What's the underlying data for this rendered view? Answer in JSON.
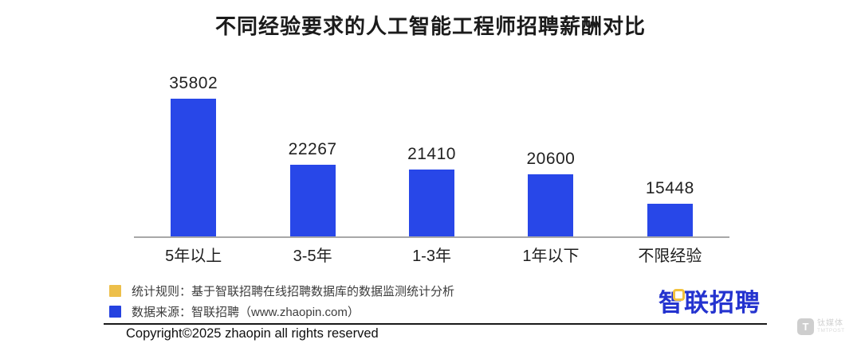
{
  "chart_data": {
    "type": "bar",
    "title": "不同经验要求的人工智能工程师招聘薪酬对比",
    "categories": [
      "5年以上",
      "3-5年",
      "1-3年",
      "1年以下",
      "不限经验"
    ],
    "values": [
      35802,
      22267,
      21410,
      20600,
      15448
    ],
    "xlabel": "",
    "ylabel": "",
    "ylim": [
      9800,
      38000
    ],
    "value_labels": true,
    "grid": false,
    "legend_position": "bottom-left",
    "bar_color": "#2847e8",
    "axis_line_color": "#a8a8a8"
  },
  "legend": {
    "items": [
      {
        "swatch_color": "#edbf4a",
        "label": "统计规则：基于智联招聘在线招聘数据库的数据监测统计分析"
      },
      {
        "swatch_color": "#2542e0",
        "label": "数据来源：智联招聘（www.zhaopin.com）"
      }
    ]
  },
  "branding": {
    "logo_text": "智联招聘",
    "logo_color": "#2433cf",
    "logo_accent_color": "#f2c23e"
  },
  "footer": {
    "copyright": "Copyright©2025 zhaopin all rights reserved"
  },
  "watermark": {
    "letter": "T",
    "chinese": "钛媒体",
    "english": "TMTPOST"
  }
}
